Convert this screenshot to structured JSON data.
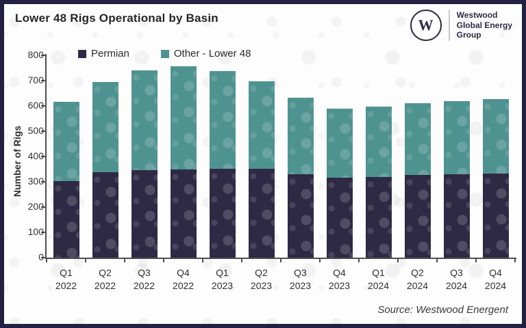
{
  "header": {
    "title": "Lower 48 Rigs Operational by Basin"
  },
  "logo": {
    "monogram": "W",
    "line1": "Westwood",
    "line2": "Global Energy",
    "line3": "Group"
  },
  "footer": {
    "source": "Source: Westwood Energent"
  },
  "colors": {
    "permian": "#2e2a45",
    "other": "#4f9391",
    "frame": "#232042",
    "axis": "#4f4f4f"
  },
  "legend": {
    "items": [
      {
        "label": "Permian",
        "color": "#2e2a45"
      },
      {
        "label": "Other - Lower 48",
        "color": "#4f9391"
      }
    ]
  },
  "chart_data": {
    "type": "bar",
    "stacked": true,
    "title": "Lower 48 Rigs Operational by Basin",
    "xlabel": "",
    "ylabel": "Number of Rigs",
    "ylim": [
      0,
      800
    ],
    "y_ticks": [
      0,
      100,
      200,
      300,
      400,
      500,
      600,
      700,
      800
    ],
    "grid": false,
    "legend_position": "top-left-inside",
    "categories": [
      {
        "quarter": "Q1",
        "year": "2022"
      },
      {
        "quarter": "Q2",
        "year": "2022"
      },
      {
        "quarter": "Q3",
        "year": "2022"
      },
      {
        "quarter": "Q4",
        "year": "2022"
      },
      {
        "quarter": "Q1",
        "year": "2023"
      },
      {
        "quarter": "Q2",
        "year": "2023"
      },
      {
        "quarter": "Q3",
        "year": "2023"
      },
      {
        "quarter": "Q4",
        "year": "2023"
      },
      {
        "quarter": "Q1",
        "year": "2024"
      },
      {
        "quarter": "Q2",
        "year": "2024"
      },
      {
        "quarter": "Q3",
        "year": "2024"
      },
      {
        "quarter": "Q4",
        "year": "2024"
      }
    ],
    "series": [
      {
        "name": "Permian",
        "color": "#2e2a45",
        "values": [
          303,
          337,
          345,
          348,
          352,
          352,
          330,
          317,
          318,
          328,
          329,
          333
        ]
      },
      {
        "name": "Other - Lower 48",
        "color": "#4f9391",
        "values": [
          312,
          358,
          395,
          409,
          385,
          345,
          303,
          273,
          280,
          282,
          291,
          294
        ]
      }
    ],
    "totals": [
      615,
      695,
      740,
      757,
      737,
      697,
      633,
      590,
      598,
      610,
      620,
      627
    ]
  }
}
